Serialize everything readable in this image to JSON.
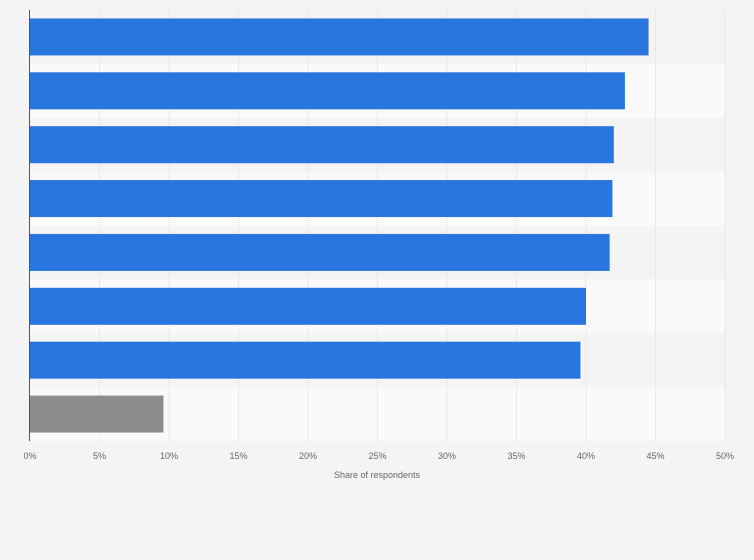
{
  "chart_data": {
    "type": "bar",
    "orientation": "horizontal",
    "categories": [
      "",
      "",
      "",
      "",
      "",
      "",
      "",
      ""
    ],
    "values": [
      44.5,
      42.8,
      42.0,
      41.9,
      41.7,
      40.0,
      39.6,
      9.6
    ],
    "colors": [
      "#2876dd",
      "#2876dd",
      "#2876dd",
      "#2876dd",
      "#2876dd",
      "#2876dd",
      "#2876dd",
      "#8c8c8c"
    ],
    "xlim": [
      0,
      50
    ],
    "x_ticks": [
      "0%",
      "5%",
      "10%",
      "15%",
      "20%",
      "25%",
      "30%",
      "35%",
      "40%",
      "45%",
      "50%"
    ],
    "xlabel": "Share of respondents",
    "ylabel": "",
    "title": "",
    "grid": "vertical dashed",
    "row_banding": true,
    "legend": "none"
  }
}
